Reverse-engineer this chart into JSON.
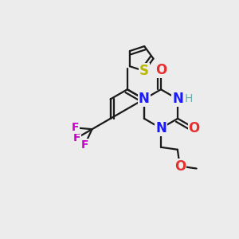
{
  "bg_color": "#ececec",
  "bond_color": "#1a1a1a",
  "bond_width": 1.6,
  "dbo": 0.015,
  "figsize": [
    3.0,
    3.0
  ],
  "dpi": 100,
  "xlim": [
    0,
    1
  ],
  "ylim": [
    0,
    1
  ]
}
